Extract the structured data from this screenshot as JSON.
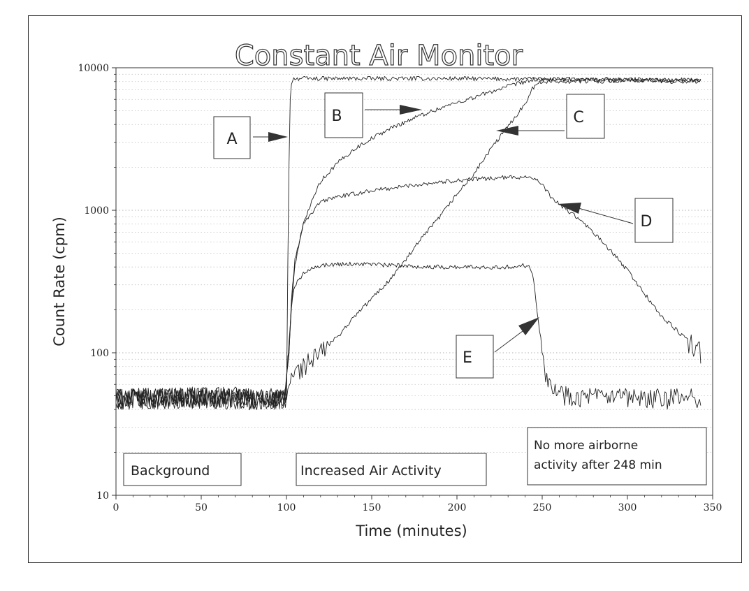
{
  "chart_data": {
    "type": "line",
    "title": "Constant Air Monitor",
    "xlabel": "Time (minutes)",
    "ylabel": "Count Rate (cpm)",
    "xlim": [
      0,
      350
    ],
    "ylim": [
      10,
      10000
    ],
    "yscale": "log",
    "x_ticks": [
      "0",
      "50",
      "100",
      "150",
      "200",
      "250",
      "300",
      "350"
    ],
    "y_ticks": [
      "10",
      "100",
      "1000",
      "10000"
    ],
    "grid": "horizontal dotted",
    "series": [
      {
        "name": "A",
        "x": [
          0,
          50,
          99,
          100,
          101,
          102,
          103,
          104,
          150,
          200,
          250,
          300,
          343
        ],
        "y": [
          48,
          50,
          48,
          45,
          800,
          5500,
          8200,
          8400,
          8400,
          8400,
          8300,
          8200,
          8100
        ]
      },
      {
        "name": "B",
        "x": [
          0,
          50,
          99,
          101,
          103,
          105,
          110,
          115,
          120,
          130,
          140,
          150,
          160,
          170,
          180,
          190,
          200,
          210,
          220,
          230,
          240,
          245,
          250,
          300,
          343
        ],
        "y": [
          48,
          49,
          47,
          90,
          220,
          420,
          800,
          1200,
          1600,
          2150,
          2700,
          3200,
          3700,
          4200,
          4700,
          5200,
          5700,
          6200,
          6800,
          7400,
          8000,
          8200,
          8300,
          8300,
          8200
        ]
      },
      {
        "name": "C",
        "x": [
          0,
          50,
          99,
          101,
          103,
          105,
          110,
          120,
          130,
          140,
          150,
          160,
          170,
          180,
          190,
          200,
          210,
          220,
          230,
          240,
          244,
          250,
          300,
          343
        ],
        "y": [
          48,
          49,
          47,
          55,
          70,
          72,
          80,
          100,
          130,
          180,
          240,
          320,
          450,
          650,
          900,
          1300,
          1800,
          2700,
          3900,
          5600,
          7200,
          8000,
          8100,
          8000
        ]
      },
      {
        "name": "D",
        "x": [
          0,
          50,
          99,
          101,
          103,
          105,
          110,
          120,
          130,
          140,
          150,
          160,
          170,
          180,
          190,
          200,
          210,
          220,
          230,
          240,
          245,
          250,
          255,
          260,
          270,
          280,
          290,
          300,
          310,
          320,
          330,
          343
        ],
        "y": [
          48,
          49,
          47,
          80,
          250,
          450,
          800,
          1150,
          1250,
          1300,
          1380,
          1420,
          1480,
          1530,
          1580,
          1620,
          1650,
          1680,
          1700,
          1720,
          1700,
          1500,
          1250,
          1100,
          900,
          700,
          520,
          380,
          260,
          180,
          140,
          100
        ]
      },
      {
        "name": "E",
        "x": [
          0,
          50,
          99,
          101,
          103,
          105,
          110,
          115,
          120,
          130,
          140,
          150,
          160,
          170,
          180,
          190,
          200,
          210,
          220,
          230,
          240,
          243,
          245,
          247,
          248,
          250,
          252,
          255,
          260,
          270,
          280,
          290,
          300,
          310,
          320,
          330,
          343
        ],
        "y": [
          48,
          49,
          47,
          90,
          220,
          300,
          360,
          400,
          410,
          420,
          420,
          420,
          410,
          410,
          400,
          400,
          400,
          400,
          400,
          400,
          410,
          400,
          330,
          200,
          160,
          110,
          75,
          58,
          52,
          50,
          49,
          48,
          48,
          47,
          48,
          48,
          48
        ]
      }
    ],
    "annotations": {
      "labels": [
        "A",
        "B",
        "C",
        "D",
        "E"
      ],
      "background": "Background",
      "increased": "Increased Air Activity",
      "note_line1": "No more airborne",
      "note_line2": "activity after 248 min"
    }
  }
}
